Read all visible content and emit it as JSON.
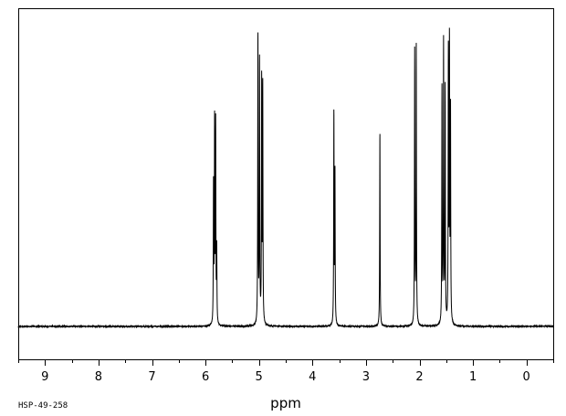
{
  "chart_data": {
    "type": "line",
    "title": "",
    "xlabel": "ppm",
    "ylabel": "",
    "xlim": [
      9.5,
      -0.5
    ],
    "x_reversed": true,
    "grid": false,
    "legend": "none",
    "tick_labels": [
      "9",
      "8",
      "7",
      "6",
      "5",
      "4",
      "3",
      "2",
      "1",
      "0"
    ],
    "tick_values": [
      9,
      8,
      7,
      6,
      5,
      4,
      3,
      2,
      1,
      0
    ],
    "annotation": "HSP-49-258",
    "line_color": "#000000",
    "series": [
      {
        "peaks": [
          {
            "ppm": 5.85,
            "height": 0.46
          },
          {
            "ppm": 5.83,
            "height": 0.66
          },
          {
            "ppm": 5.81,
            "height": 0.65
          },
          {
            "ppm": 5.79,
            "height": 0.24
          },
          {
            "ppm": 5.02,
            "height": 0.95
          },
          {
            "ppm": 4.99,
            "height": 0.87
          },
          {
            "ppm": 4.95,
            "height": 0.8
          },
          {
            "ppm": 4.93,
            "height": 0.78
          },
          {
            "ppm": 3.6,
            "height": 0.7
          },
          {
            "ppm": 3.58,
            "height": 0.5
          },
          {
            "ppm": 2.74,
            "height": 0.64
          },
          {
            "ppm": 2.09,
            "height": 0.9
          },
          {
            "ppm": 2.06,
            "height": 0.91
          },
          {
            "ppm": 1.58,
            "height": 0.77
          },
          {
            "ppm": 1.55,
            "height": 0.92
          },
          {
            "ppm": 1.52,
            "height": 0.77
          },
          {
            "ppm": 1.46,
            "height": 0.88
          },
          {
            "ppm": 1.44,
            "height": 0.91
          },
          {
            "ppm": 1.42,
            "height": 0.7
          }
        ]
      }
    ]
  }
}
